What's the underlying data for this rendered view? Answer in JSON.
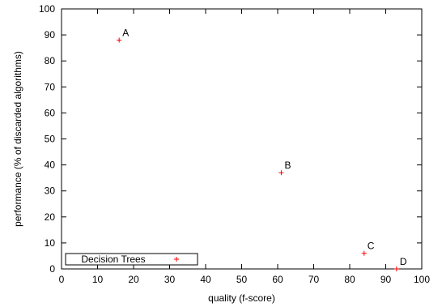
{
  "chart_data": {
    "type": "scatter",
    "xlabel": "quality (f-score)",
    "ylabel": "performance (% of discarded algorithms)",
    "xlim": [
      0,
      100
    ],
    "ylim": [
      0,
      100
    ],
    "xticks": [
      0,
      10,
      20,
      30,
      40,
      50,
      60,
      70,
      80,
      90,
      100
    ],
    "yticks": [
      0,
      10,
      20,
      30,
      40,
      50,
      60,
      70,
      80,
      90,
      100
    ],
    "grid": false,
    "legend_position": "bottom-left",
    "series": [
      {
        "name": "Decision Trees",
        "color": "#ff0000",
        "marker": "plus",
        "points": [
          {
            "label": "A",
            "x": 16,
            "y": 88
          },
          {
            "label": "B",
            "x": 61,
            "y": 37
          },
          {
            "label": "C",
            "x": 84,
            "y": 6
          },
          {
            "label": "D",
            "x": 93,
            "y": 0
          }
        ]
      }
    ]
  }
}
